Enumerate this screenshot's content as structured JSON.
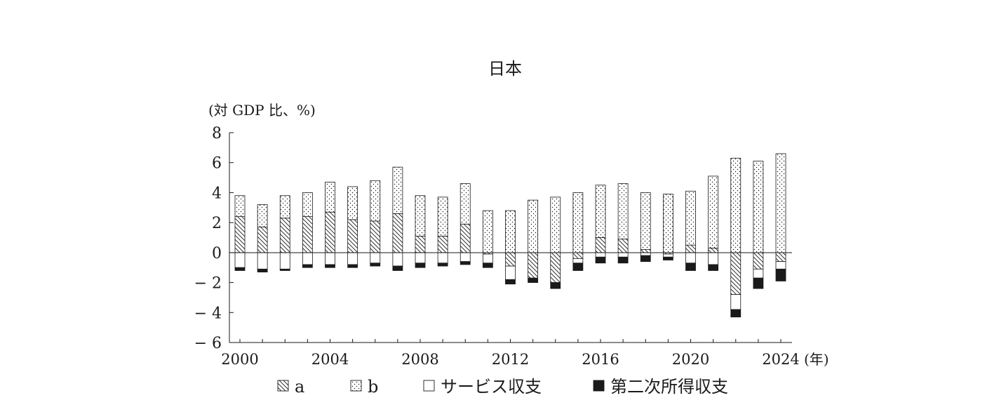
{
  "chart_data": {
    "type": "bar",
    "stacked": true,
    "title": "日本",
    "ylabel": "(対 GDP 比、%)",
    "xlabel": "(年)",
    "ylim": [
      -6,
      8
    ],
    "yticks": [
      8,
      6,
      4,
      2,
      0,
      -2,
      -4,
      -6
    ],
    "ytick_labels": [
      "8",
      "6",
      "4",
      "2",
      "0",
      "− 2",
      "− 4",
      "− 6"
    ],
    "xtick_labels": [
      "2000",
      "2004",
      "2008",
      "2012",
      "2016",
      "2020",
      "2024"
    ],
    "categories": [
      2000,
      2001,
      2002,
      2003,
      2004,
      2005,
      2006,
      2007,
      2008,
      2009,
      2010,
      2011,
      2012,
      2013,
      2014,
      2015,
      2016,
      2017,
      2018,
      2019,
      2020,
      2021,
      2022,
      2023,
      2024
    ],
    "grid": false,
    "legend_position": "bottom",
    "series": [
      {
        "name": "a",
        "pattern": "diagonal-hatch",
        "values": [
          2.4,
          1.7,
          2.3,
          2.4,
          2.7,
          2.2,
          2.1,
          2.6,
          1.1,
          1.1,
          1.9,
          -0.1,
          -0.9,
          -1.7,
          -2.0,
          -0.4,
          1.0,
          0.9,
          0.2,
          -0.1,
          0.5,
          0.3,
          -2.8,
          -1.1,
          -0.6
        ]
      },
      {
        "name": "b",
        "pattern": "dots",
        "values": [
          1.4,
          1.5,
          1.5,
          1.6,
          2.0,
          2.2,
          2.7,
          3.1,
          2.7,
          2.6,
          2.7,
          2.8,
          2.8,
          3.5,
          3.7,
          4.0,
          3.5,
          3.7,
          3.8,
          3.9,
          3.6,
          4.8,
          6.3,
          6.1,
          6.6
        ]
      },
      {
        "name": "サービス収支",
        "pattern": "white",
        "values": [
          -1.0,
          -1.1,
          -1.1,
          -0.8,
          -0.8,
          -0.8,
          -0.7,
          -0.9,
          -0.7,
          -0.7,
          -0.6,
          -0.6,
          -0.9,
          -0.0,
          -0.0,
          -0.3,
          -0.3,
          -0.3,
          -0.2,
          -0.2,
          -0.7,
          -0.8,
          -1.0,
          -0.6,
          -0.5
        ]
      },
      {
        "name": "第二次所得収支",
        "pattern": "black",
        "values": [
          -0.2,
          -0.2,
          -0.1,
          -0.2,
          -0.2,
          -0.2,
          -0.2,
          -0.3,
          -0.3,
          -0.2,
          -0.2,
          -0.3,
          -0.3,
          -0.3,
          -0.4,
          -0.5,
          -0.4,
          -0.4,
          -0.4,
          -0.2,
          -0.5,
          -0.4,
          -0.5,
          -0.7,
          -0.8
        ]
      }
    ],
    "legend": [
      {
        "label": "a",
        "pattern": "diagonal-hatch"
      },
      {
        "label": "b",
        "pattern": "dots"
      },
      {
        "label": "サービス収支",
        "pattern": "white"
      },
      {
        "label": "第二次所得収支",
        "pattern": "black"
      }
    ]
  }
}
